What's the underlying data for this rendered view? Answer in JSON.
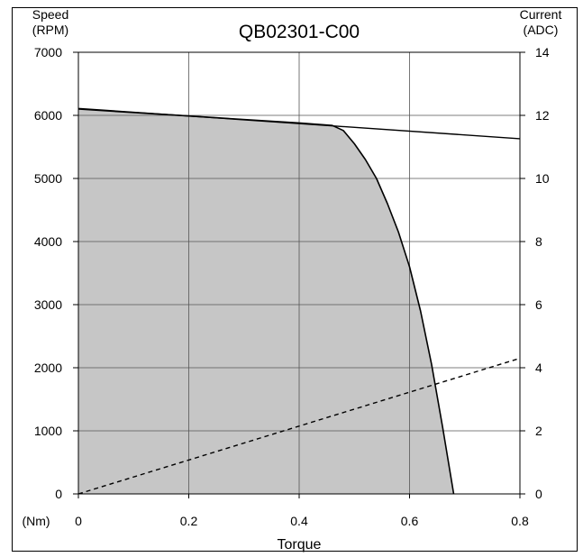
{
  "chart_data": {
    "type": "area",
    "title": "QB02301-C00",
    "xlabel": "Torque",
    "x_unit": "(Nm)",
    "ylabel_left": [
      "Speed",
      "(RPM)"
    ],
    "ylabel_right": [
      "Current",
      "(ADC)"
    ],
    "xlim": [
      0,
      0.8
    ],
    "ylim_left": [
      0,
      7000
    ],
    "ylim_right": [
      0,
      14
    ],
    "x_ticks": [
      "0",
      "0.2",
      "0.4",
      "0.6",
      "0.8"
    ],
    "y_left_ticks": [
      "0",
      "1000",
      "2000",
      "3000",
      "4000",
      "5000",
      "6000",
      "7000"
    ],
    "y_right_ticks": [
      "0",
      "2",
      "4",
      "6",
      "8",
      "10",
      "12",
      "14"
    ],
    "grid": true,
    "series": [
      {
        "type": "area",
        "axis": "left",
        "style": "filled-gray",
        "points": [
          [
            0.0,
            6100
          ],
          [
            0.2,
            5990
          ],
          [
            0.4,
            5880
          ],
          [
            0.46,
            5840
          ],
          [
            0.48,
            5760
          ],
          [
            0.5,
            5550
          ],
          [
            0.52,
            5300
          ],
          [
            0.54,
            5000
          ],
          [
            0.56,
            4600
          ],
          [
            0.58,
            4150
          ],
          [
            0.6,
            3600
          ],
          [
            0.62,
            2900
          ],
          [
            0.64,
            2050
          ],
          [
            0.66,
            1050
          ],
          [
            0.68,
            0
          ]
        ]
      },
      {
        "type": "line",
        "axis": "left",
        "style": "solid",
        "points": [
          [
            0.0,
            6110
          ],
          [
            0.8,
            5630
          ]
        ]
      },
      {
        "type": "line",
        "axis": "right",
        "style": "dashed",
        "points": [
          [
            0.0,
            0.0
          ],
          [
            0.8,
            4.3
          ]
        ]
      }
    ]
  }
}
